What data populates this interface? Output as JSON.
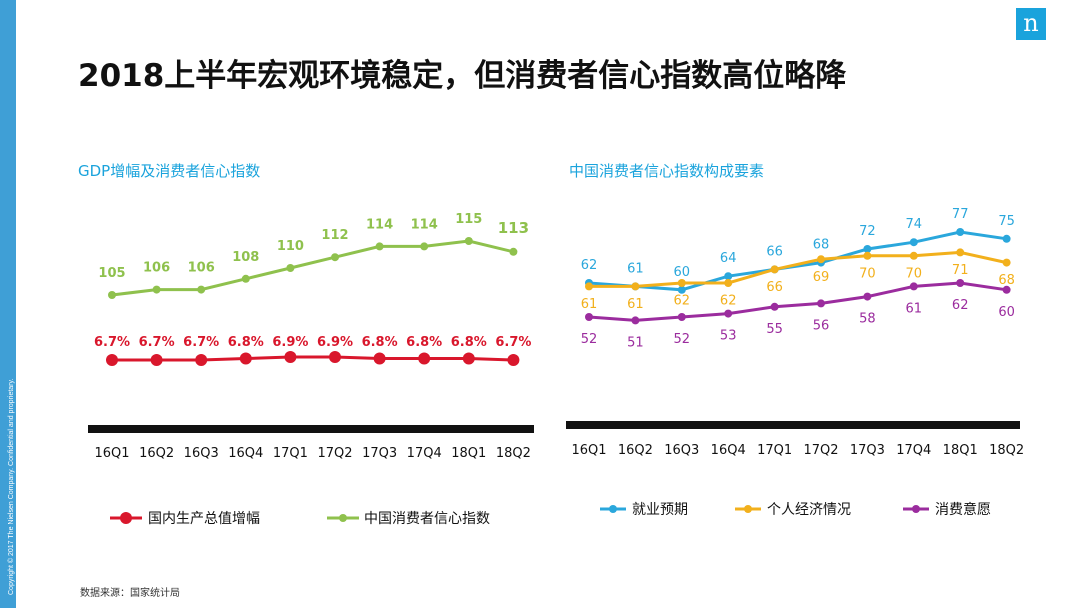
{
  "page": {
    "title": "2018上半年宏观环境稳定，但消费者信心指数高位略降",
    "source": "数据来源：国家统计局",
    "copyright": "Copyright © 2017 The Nielsen Company. Confidential and proprietary.",
    "logo": "n"
  },
  "colors": {
    "brand_blue": "#1aa3dc",
    "gdp_red": "#d9172c",
    "cci_green": "#8fc14d",
    "employment_blue": "#2aa7dc",
    "finance_yellow": "#f2b01c",
    "spending_purple": "#9b2c9e",
    "axis_black": "#111111"
  },
  "chart_data": [
    {
      "type": "line",
      "title": "GDP增幅及消费者信心指数",
      "categories": [
        "16Q1",
        "16Q2",
        "16Q3",
        "16Q4",
        "17Q1",
        "17Q2",
        "17Q3",
        "17Q4",
        "18Q1",
        "18Q2"
      ],
      "series": [
        {
          "name": "国内生产总值增幅",
          "values": [
            6.7,
            6.7,
            6.7,
            6.8,
            6.9,
            6.9,
            6.8,
            6.8,
            6.8,
            6.7
          ],
          "labels": [
            "6.7%",
            "6.7%",
            "6.7%",
            "6.8%",
            "6.9%",
            "6.9%",
            "6.8%",
            "6.8%",
            "6.8%",
            "6.7%"
          ]
        },
        {
          "name": "中国消费者信心指数",
          "values": [
            105,
            106,
            106,
            108,
            110,
            112,
            114,
            114,
            115,
            113
          ],
          "labels": [
            "105",
            "106",
            "106",
            "108",
            "110",
            "112",
            "114",
            "114",
            "115",
            "113"
          ]
        }
      ],
      "legend_position": "bottom",
      "grid": false
    },
    {
      "type": "line",
      "title": "中国消费者信心指数构成要素",
      "categories": [
        "16Q1",
        "16Q2",
        "16Q3",
        "16Q4",
        "17Q1",
        "17Q2",
        "17Q3",
        "17Q4",
        "18Q1",
        "18Q2"
      ],
      "series": [
        {
          "name": "就业预期",
          "values": [
            62,
            61,
            60,
            64,
            66,
            68,
            72,
            74,
            77,
            75
          ],
          "labels": [
            "62",
            "61",
            "60",
            "64",
            "66",
            "68",
            "72",
            "74",
            "77",
            "75"
          ]
        },
        {
          "name": "个人经济情况",
          "values": [
            61,
            61,
            62,
            62,
            66,
            69,
            70,
            70,
            71,
            68
          ],
          "labels": [
            "61",
            "61",
            "62",
            "62",
            "66",
            "69",
            "70",
            "70",
            "71",
            "68"
          ]
        },
        {
          "name": "消费意愿",
          "values": [
            52,
            51,
            52,
            53,
            55,
            56,
            58,
            61,
            62,
            60
          ],
          "labels": [
            "52",
            "51",
            "52",
            "53",
            "55",
            "56",
            "58",
            "61",
            "62",
            "60"
          ]
        }
      ],
      "legend_position": "bottom",
      "grid": false
    }
  ]
}
